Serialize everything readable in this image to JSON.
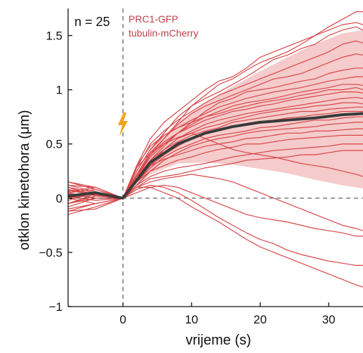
{
  "chart_data": {
    "type": "line",
    "xlabel": "vrijeme (s)",
    "ylabel": "otklon kinetohora (μm)",
    "xlim": [
      -8,
      35
    ],
    "ylim": [
      -1,
      1.75
    ],
    "xticks": [
      0,
      10,
      20,
      30
    ],
    "yticks": [
      1.5,
      1,
      0.5,
      0,
      -0.5,
      -1
    ],
    "ytick_labels": [
      "1.5",
      "1",
      "0.5",
      "0",
      "−0.5",
      "−1"
    ],
    "grid": false,
    "annotation": "n = 25",
    "legend_position": "top-left",
    "legend": [
      "PRC1-GFP",
      "tubulin-mCherry"
    ],
    "colors": {
      "individual": "#d8474a",
      "mean": "#3a3a3a",
      "band": "#f2b9b9",
      "flash": "#f2a31b",
      "legend": "#c0404a",
      "axis": "#111111",
      "reference": "#555555"
    },
    "icons": {
      "flash": "lightning-bolt-icon"
    },
    "mean": {
      "name": "mean",
      "x": [
        -8,
        -4,
        0,
        4,
        8,
        12,
        16,
        20,
        24,
        28,
        32,
        35
      ],
      "y": [
        0.02,
        0.05,
        0.0,
        0.33,
        0.5,
        0.6,
        0.66,
        0.7,
        0.72,
        0.74,
        0.77,
        0.78
      ]
    },
    "band": {
      "x": [
        0,
        4,
        8,
        12,
        16,
        20,
        24,
        28,
        32,
        35
      ],
      "upper": [
        0.0,
        0.45,
        0.7,
        0.88,
        1.03,
        1.17,
        1.3,
        1.42,
        1.52,
        1.55
      ],
      "lower": [
        0.0,
        0.22,
        0.32,
        0.33,
        0.31,
        0.27,
        0.23,
        0.17,
        0.12,
        0.09
      ]
    },
    "series": [
      {
        "x": [
          -8,
          -4,
          0,
          2,
          4,
          6,
          8,
          10,
          12,
          14,
          16,
          18,
          20,
          22,
          24,
          26,
          28,
          30,
          32,
          34,
          35
        ],
        "y": [
          0.15,
          0.1,
          0.0,
          0.25,
          0.45,
          0.6,
          0.75,
          0.85,
          0.95,
          1.05,
          1.1,
          1.18,
          1.25,
          1.3,
          1.35,
          1.42,
          1.5,
          1.58,
          1.65,
          1.72,
          1.72
        ]
      },
      {
        "x": [
          -8,
          -4,
          0,
          2,
          4,
          6,
          8,
          10,
          12,
          14,
          16,
          18,
          20,
          22,
          24,
          26,
          28,
          30,
          32,
          34,
          35
        ],
        "y": [
          -0.05,
          0.0,
          0.0,
          0.3,
          0.55,
          0.7,
          0.8,
          0.9,
          1.0,
          1.08,
          1.12,
          1.2,
          1.3,
          1.35,
          1.4,
          1.45,
          1.5,
          1.55,
          1.6,
          1.62,
          1.6
        ]
      },
      {
        "x": [
          -8,
          -4,
          0,
          2,
          4,
          6,
          8,
          10,
          12,
          14,
          16,
          18,
          20,
          22,
          24,
          26,
          28,
          30,
          32,
          34,
          35
        ],
        "y": [
          0.05,
          0.08,
          0.0,
          0.2,
          0.4,
          0.55,
          0.7,
          0.85,
          0.92,
          0.98,
          1.05,
          1.12,
          1.2,
          1.28,
          1.32,
          1.38,
          1.42,
          1.5,
          1.55,
          1.58,
          1.55
        ]
      },
      {
        "x": [
          -8,
          -4,
          0,
          2,
          4,
          6,
          8,
          10,
          12,
          14,
          16,
          18,
          20,
          22,
          24,
          26,
          28,
          30,
          32,
          34,
          35
        ],
        "y": [
          -0.1,
          -0.05,
          0.0,
          0.28,
          0.5,
          0.62,
          0.72,
          0.8,
          0.88,
          0.95,
          1.0,
          1.05,
          1.1,
          1.15,
          1.2,
          1.25,
          1.3,
          1.35,
          1.42,
          1.45,
          1.43
        ]
      },
      {
        "x": [
          -8,
          -4,
          0,
          2,
          4,
          6,
          8,
          10,
          12,
          14,
          16,
          18,
          20,
          22,
          24,
          26,
          28,
          30,
          32,
          34,
          35
        ],
        "y": [
          0.1,
          0.02,
          0.0,
          0.22,
          0.42,
          0.55,
          0.68,
          0.78,
          0.85,
          0.9,
          0.95,
          1.0,
          1.05,
          1.1,
          1.12,
          1.15,
          1.2,
          1.25,
          1.3,
          1.33,
          1.32
        ]
      },
      {
        "x": [
          -8,
          -4,
          0,
          2,
          4,
          6,
          8,
          10,
          12,
          14,
          16,
          18,
          20,
          22,
          24,
          26,
          28,
          30,
          32,
          34,
          35
        ],
        "y": [
          -0.12,
          -0.05,
          0.0,
          0.2,
          0.38,
          0.5,
          0.6,
          0.7,
          0.8,
          0.88,
          0.92,
          0.98,
          1.0,
          1.02,
          1.05,
          1.08,
          1.1,
          1.15,
          1.18,
          1.2,
          1.2
        ]
      },
      {
        "x": [
          -8,
          -4,
          0,
          2,
          4,
          6,
          8,
          10,
          12,
          14,
          16,
          18,
          20,
          22,
          24,
          26,
          28,
          30,
          32,
          34,
          35
        ],
        "y": [
          0.0,
          0.05,
          0.0,
          0.25,
          0.45,
          0.58,
          0.65,
          0.72,
          0.78,
          0.84,
          0.88,
          0.92,
          0.95,
          0.98,
          1.0,
          1.02,
          1.05,
          1.08,
          1.1,
          1.12,
          1.12
        ]
      },
      {
        "x": [
          -8,
          -4,
          0,
          2,
          4,
          6,
          8,
          10,
          12,
          14,
          16,
          18,
          20,
          22,
          24,
          26,
          28,
          30,
          32,
          34,
          35
        ],
        "y": [
          0.12,
          0.06,
          0.0,
          0.18,
          0.35,
          0.48,
          0.6,
          0.68,
          0.75,
          0.8,
          0.85,
          0.88,
          0.9,
          0.92,
          0.95,
          0.98,
          1.0,
          1.02,
          1.05,
          1.05,
          1.04
        ]
      },
      {
        "x": [
          -8,
          -4,
          0,
          2,
          4,
          6,
          8,
          10,
          12,
          14,
          16,
          18,
          20,
          22,
          24,
          26,
          28,
          30,
          32,
          34,
          35
        ],
        "y": [
          -0.08,
          0.0,
          0.0,
          0.3,
          0.48,
          0.58,
          0.65,
          0.7,
          0.75,
          0.78,
          0.82,
          0.85,
          0.88,
          0.9,
          0.92,
          0.95,
          0.97,
          1.0,
          1.0,
          1.02,
          1.0
        ]
      },
      {
        "x": [
          -8,
          -4,
          0,
          2,
          4,
          6,
          8,
          10,
          12,
          14,
          16,
          18,
          20,
          22,
          24,
          26,
          28,
          30,
          32,
          34,
          35
        ],
        "y": [
          0.08,
          0.04,
          0.0,
          0.22,
          0.4,
          0.52,
          0.6,
          0.66,
          0.72,
          0.76,
          0.8,
          0.82,
          0.85,
          0.87,
          0.9,
          0.92,
          0.94,
          0.96,
          0.98,
          0.98,
          0.97
        ]
      },
      {
        "x": [
          -8,
          -4,
          0,
          2,
          4,
          6,
          8,
          10,
          12,
          14,
          16,
          18,
          20,
          22,
          24,
          26,
          28,
          30,
          32,
          34,
          35
        ],
        "y": [
          0.02,
          -0.02,
          0.0,
          0.15,
          0.3,
          0.45,
          0.55,
          0.62,
          0.68,
          0.72,
          0.75,
          0.78,
          0.8,
          0.82,
          0.84,
          0.86,
          0.88,
          0.9,
          0.92,
          0.93,
          0.92
        ]
      },
      {
        "x": [
          -8,
          -4,
          0,
          2,
          4,
          6,
          8,
          10,
          12,
          14,
          16,
          18,
          20,
          22,
          24,
          26,
          28,
          30,
          32,
          34,
          35
        ],
        "y": [
          -0.15,
          -0.08,
          0.0,
          0.28,
          0.42,
          0.5,
          0.56,
          0.6,
          0.65,
          0.68,
          0.72,
          0.75,
          0.78,
          0.8,
          0.82,
          0.83,
          0.85,
          0.86,
          0.88,
          0.88,
          0.87
        ]
      },
      {
        "x": [
          -8,
          -4,
          0,
          2,
          4,
          6,
          8,
          10,
          12,
          14,
          16,
          18,
          20,
          22,
          24,
          26,
          28,
          30,
          32,
          34,
          35
        ],
        "y": [
          0.06,
          0.1,
          0.0,
          0.2,
          0.35,
          0.45,
          0.52,
          0.58,
          0.62,
          0.65,
          0.7,
          0.72,
          0.74,
          0.76,
          0.78,
          0.8,
          0.8,
          0.82,
          0.83,
          0.84,
          0.84
        ]
      },
      {
        "x": [
          -8,
          -4,
          0,
          2,
          4,
          6,
          8,
          10,
          12,
          14,
          16,
          18,
          20,
          22,
          24,
          26,
          28,
          30,
          32,
          34,
          35
        ],
        "y": [
          0.0,
          0.03,
          0.0,
          0.18,
          0.3,
          0.4,
          0.48,
          0.55,
          0.6,
          0.63,
          0.66,
          0.68,
          0.7,
          0.72,
          0.74,
          0.75,
          0.77,
          0.78,
          0.8,
          0.8,
          0.8
        ]
      },
      {
        "x": [
          -8,
          -4,
          0,
          2,
          4,
          6,
          8,
          10,
          12,
          14,
          16,
          18,
          20,
          22,
          24,
          26,
          28,
          30,
          32,
          34,
          35
        ],
        "y": [
          -0.05,
          0.02,
          0.0,
          0.15,
          0.28,
          0.38,
          0.45,
          0.5,
          0.55,
          0.58,
          0.6,
          0.62,
          0.65,
          0.66,
          0.68,
          0.7,
          0.72,
          0.72,
          0.74,
          0.75,
          0.75
        ]
      },
      {
        "x": [
          -8,
          -4,
          0,
          2,
          4,
          6,
          8,
          10,
          12,
          14,
          16,
          18,
          20,
          22,
          24,
          26,
          28,
          30,
          32,
          34,
          35
        ],
        "y": [
          0.1,
          0.05,
          0.0,
          0.12,
          0.25,
          0.35,
          0.42,
          0.48,
          0.52,
          0.55,
          0.57,
          0.6,
          0.62,
          0.63,
          0.64,
          0.65,
          0.66,
          0.68,
          0.69,
          0.7,
          0.7
        ]
      },
      {
        "x": [
          -8,
          -4,
          0,
          2,
          4,
          6,
          8,
          10,
          12,
          14,
          16,
          18,
          20,
          22,
          24,
          26,
          28,
          30,
          32,
          34,
          35
        ],
        "y": [
          0.04,
          0.0,
          0.0,
          0.2,
          0.3,
          0.36,
          0.4,
          0.44,
          0.48,
          0.5,
          0.52,
          0.55,
          0.56,
          0.58,
          0.6,
          0.6,
          0.62,
          0.62,
          0.63,
          0.64,
          0.64
        ]
      },
      {
        "x": [
          -8,
          -4,
          0,
          2,
          4,
          6,
          8,
          10,
          12,
          14,
          16,
          18,
          20,
          22,
          24,
          26,
          28,
          30,
          32,
          34,
          35
        ],
        "y": [
          -0.02,
          0.06,
          0.0,
          0.15,
          0.25,
          0.3,
          0.35,
          0.38,
          0.42,
          0.45,
          0.47,
          0.5,
          0.5,
          0.52,
          0.54,
          0.55,
          0.56,
          0.57,
          0.58,
          0.58,
          0.58
        ]
      },
      {
        "x": [
          -8,
          -4,
          0,
          2,
          4,
          6,
          8,
          10,
          12,
          14,
          16,
          18,
          20,
          22,
          24,
          26,
          28,
          30,
          32,
          34,
          35
        ],
        "y": [
          0.07,
          0.03,
          0.0,
          0.12,
          0.2,
          0.25,
          0.28,
          0.3,
          0.32,
          0.35,
          0.38,
          0.4,
          0.42,
          0.44,
          0.45,
          0.46,
          0.47,
          0.48,
          0.5,
          0.5,
          0.5
        ]
      },
      {
        "x": [
          -8,
          -4,
          0,
          2,
          4,
          6,
          8,
          10,
          12,
          14,
          16,
          18,
          20,
          22,
          24,
          26,
          28,
          30,
          32,
          34,
          35
        ],
        "y": [
          0.15,
          0.08,
          0.0,
          0.1,
          0.18,
          0.2,
          0.22,
          0.25,
          0.28,
          0.3,
          0.32,
          0.35,
          0.36,
          0.37,
          0.38,
          0.4,
          0.4,
          0.42,
          0.44,
          0.44,
          0.44
        ]
      },
      {
        "x": [
          -8,
          -4,
          0,
          2,
          4,
          6,
          8,
          10,
          12,
          14,
          16,
          18,
          20,
          22,
          24,
          26,
          28,
          30,
          32,
          34,
          35
        ],
        "y": [
          -0.12,
          -0.1,
          0.0,
          0.1,
          0.15,
          0.18,
          0.2,
          0.22,
          0.2,
          0.18,
          0.15,
          0.1,
          0.05,
          0.0,
          -0.05,
          -0.1,
          -0.15,
          -0.2,
          -0.25,
          -0.28,
          -0.3
        ]
      },
      {
        "x": [
          -8,
          -4,
          0,
          2,
          4,
          6,
          8,
          10,
          12,
          14,
          16,
          18,
          20,
          22,
          24,
          26,
          28,
          30,
          32,
          34,
          35
        ],
        "y": [
          0.05,
          0.0,
          0.0,
          0.05,
          0.1,
          0.12,
          0.1,
          0.05,
          0.0,
          -0.05,
          -0.1,
          -0.15,
          -0.18,
          -0.2,
          -0.22,
          -0.25,
          -0.28,
          -0.3,
          -0.32,
          -0.35,
          -0.35
        ]
      },
      {
        "x": [
          -8,
          -4,
          0,
          2,
          4,
          6,
          8,
          10,
          12,
          14,
          16,
          18,
          20,
          22,
          24,
          26,
          28,
          30,
          32,
          34,
          35
        ],
        "y": [
          0.0,
          -0.05,
          0.0,
          0.08,
          0.12,
          0.1,
          0.05,
          -0.02,
          -0.1,
          -0.18,
          -0.25,
          -0.32,
          -0.38,
          -0.42,
          -0.48,
          -0.52,
          -0.55,
          -0.58,
          -0.6,
          -0.62,
          -0.62
        ]
      },
      {
        "x": [
          -8,
          -4,
          0,
          2,
          4,
          6,
          8,
          10,
          12,
          14,
          16,
          18,
          20,
          22,
          24,
          26,
          28,
          30,
          32,
          34,
          35
        ],
        "y": [
          -0.05,
          0.04,
          0.0,
          0.1,
          0.1,
          0.05,
          0.0,
          -0.08,
          -0.15,
          -0.22,
          -0.3,
          -0.38,
          -0.45,
          -0.5,
          -0.55,
          -0.6,
          -0.65,
          -0.7,
          -0.75,
          -0.8,
          -0.82
        ]
      },
      {
        "x": [
          -8,
          -4,
          0,
          2,
          4,
          6,
          8,
          10,
          12,
          14,
          16,
          18,
          20,
          22,
          24,
          26,
          28,
          30,
          32,
          34,
          35
        ],
        "y": [
          0.12,
          0.1,
          0.0,
          0.18,
          0.32,
          0.45,
          0.55,
          0.6,
          0.55,
          0.5,
          0.45,
          0.42,
          0.4,
          0.38,
          0.35,
          0.32,
          0.3,
          0.28,
          0.25,
          0.22,
          0.2
        ]
      }
    ]
  }
}
